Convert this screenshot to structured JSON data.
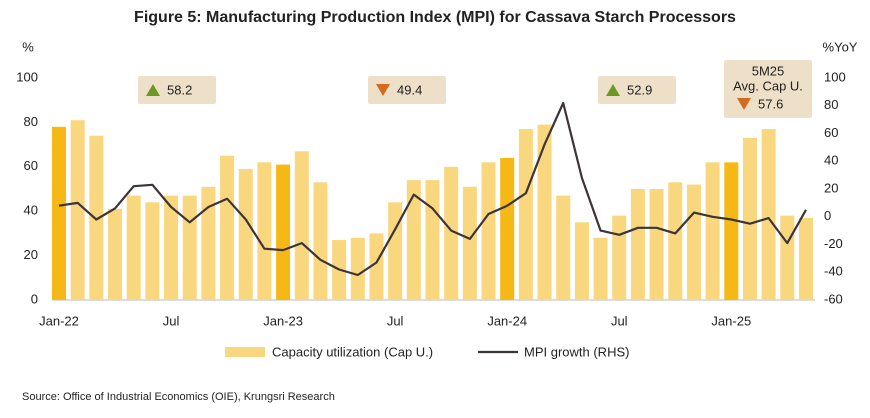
{
  "chart_data": {
    "type": "bar_line",
    "title": "Figure 5: Manufacturing Production Index (MPI) for Cassava Starch Processors",
    "y_label": "%",
    "y2_label": "%YoY",
    "categories": [
      "Jan-22",
      null,
      null,
      null,
      null,
      null,
      "Jul",
      null,
      null,
      null,
      null,
      null,
      "Jan-23",
      null,
      null,
      null,
      null,
      null,
      "Jul",
      null,
      null,
      null,
      null,
      null,
      "Jan-24",
      null,
      null,
      null,
      null,
      null,
      "Jul",
      null,
      null,
      null,
      null,
      null,
      "Jan-25",
      null,
      null,
      null,
      null
    ],
    "series": [
      {
        "name": "Capacity utilization (Cap U.)",
        "type": "bar",
        "color": "#f9d77e",
        "values": [
          78,
          81,
          74,
          41,
          47,
          44,
          47,
          47,
          51,
          65,
          59,
          62,
          61,
          67,
          53,
          27,
          28,
          30,
          44,
          54,
          54,
          60,
          51,
          62,
          64,
          77,
          79,
          47,
          35,
          28,
          38,
          50,
          50,
          53,
          52,
          62,
          62,
          73,
          77,
          38,
          37
        ],
        "colors": [
          "#f6b814",
          "#f9d77e",
          "#f9d77e",
          "#f9d77e",
          "#f9d77e",
          "#f9d77e",
          "#f9d77e",
          "#f9d77e",
          "#f9d77e",
          "#f9d77e",
          "#f9d77e",
          "#f9d77e",
          "#f6b814",
          "#f9d77e",
          "#f9d77e",
          "#f9d77e",
          "#f9d77e",
          "#f9d77e",
          "#f9d77e",
          "#f9d77e",
          "#f9d77e",
          "#f9d77e",
          "#f9d77e",
          "#f9d77e",
          "#f6b814",
          "#f9d77e",
          "#f9d77e",
          "#f9d77e",
          "#f9d77e",
          "#f9d77e",
          "#f9d77e",
          "#f9d77e",
          "#f9d77e",
          "#f9d77e",
          "#f9d77e",
          "#f9d77e",
          "#f6b814",
          "#f9d77e",
          "#f9d77e",
          "#f9d77e",
          "#f9d77e"
        ]
      },
      {
        "name": "MPI growth (RHS)",
        "type": "line",
        "color": "#3d3438",
        "axis": "y2",
        "values": [
          8,
          10,
          -2,
          6,
          22,
          23,
          7,
          -4,
          7,
          13,
          -2,
          -23,
          -24,
          -19,
          -31,
          -38,
          -42,
          -33,
          -9,
          16,
          6,
          -10,
          -16,
          2,
          8,
          17,
          52,
          82,
          28,
          -10,
          -13,
          -8,
          -8,
          -12,
          3,
          0,
          -2,
          -5,
          -1,
          -19,
          5
        ]
      }
    ],
    "ylim": [
      0,
      100
    ],
    "yticks": [
      0,
      20,
      40,
      60,
      80,
      100
    ],
    "y2lim": [
      -60,
      100
    ],
    "y2ticks": [
      -60,
      -40,
      -20,
      0,
      20,
      40,
      60,
      80,
      100
    ],
    "annotations": [
      {
        "value": 58.2,
        "trend": "up"
      },
      {
        "value": 49.4,
        "trend": "down"
      },
      {
        "value": 52.9,
        "trend": "up"
      },
      {
        "lines": [
          "5M25",
          "Avg. Cap U."
        ],
        "value": 57.6,
        "trend": "down"
      }
    ],
    "legend": "bottom",
    "source": "Source: Office of Industrial Economics (OIE), Krungsri Research"
  }
}
